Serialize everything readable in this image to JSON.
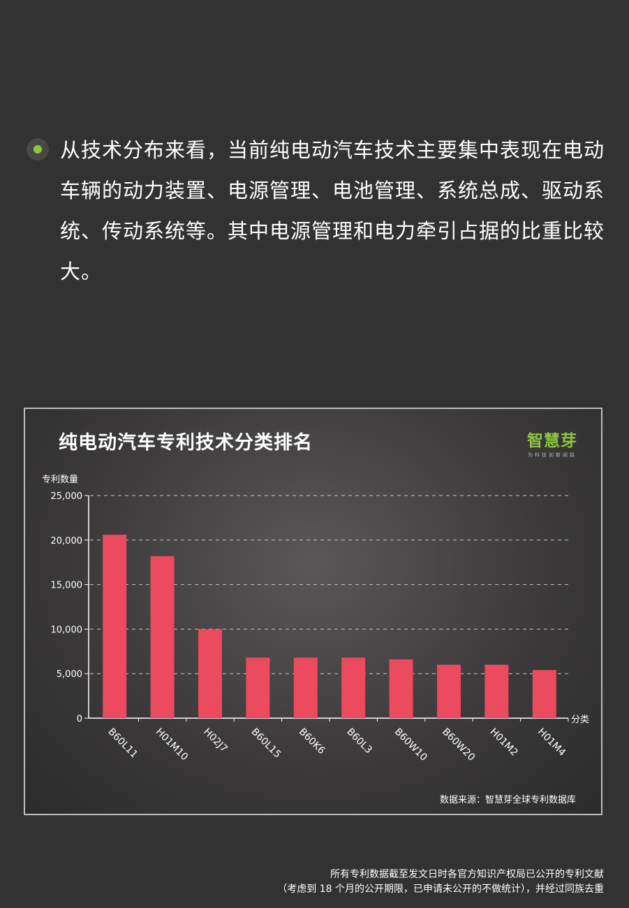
{
  "bullet": {
    "text": "从技术分布来看，当前纯电动汽车技术主要集中表现在电动车辆的动力装置、电源管理、电池管理、系统总成、驱动系统、传动系统等。其中电源管理和电力牵引占据的比重比较大。"
  },
  "brand": {
    "name": "智慧芽",
    "slogan": "为科技创新闻路"
  },
  "source_note": "数据来源：智慧芽全球专利数据库",
  "footnote": {
    "line1": "所有专利数据截至发文日时各官方知识产权局已公开的专利文献",
    "line2": "（考虑到 18 个月的公开期限，已申请未公开的不做统计），并经过同族去重"
  },
  "colors": {
    "bar": "#ec4a5e",
    "accent": "#8cc63f",
    "background": "#323232"
  },
  "chart_data": {
    "type": "bar",
    "title": "纯电动汽车专利技术分类排名",
    "xlabel": "分类",
    "ylabel": "专利数量",
    "categories": [
      "B60L11",
      "H01M10",
      "H02J7",
      "B60L15",
      "B60K6",
      "B60L3",
      "B60W10",
      "B60W20",
      "H01M2",
      "H01M4"
    ],
    "values": [
      20600,
      18200,
      10000,
      6800,
      6800,
      6800,
      6600,
      6000,
      6000,
      5400
    ],
    "yticks": [
      "0",
      "5,000",
      "10,000",
      "15,000",
      "20,000",
      "25,000"
    ],
    "ylim": [
      0,
      25000
    ],
    "grid": "dashed-horizontal"
  }
}
